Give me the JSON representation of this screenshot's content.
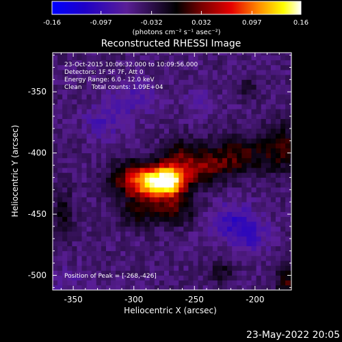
{
  "chart_data": {
    "type": "heatmap",
    "title": "Reconstructed RHESSI Image",
    "xlabel": "Heliocentric X (arcsec)",
    "ylabel": "Heliocentric Y (arcsec)",
    "xlim": [
      -367,
      -170
    ],
    "ylim": [
      -512,
      -318
    ],
    "x_ticks": [
      "-350",
      "-300",
      "-250",
      "-200"
    ],
    "x_tick_values": [
      -350,
      -300,
      -250,
      -200
    ],
    "y_ticks": [
      "-350",
      "-400",
      "-450",
      "-500"
    ],
    "y_tick_values": [
      -350,
      -400,
      -450,
      -500
    ],
    "colorbar": {
      "ticks": [
        "-0.16",
        "-0.097",
        "-0.032",
        "0.032",
        "0.097",
        "0.16"
      ],
      "tick_values": [
        -0.16,
        -0.097,
        -0.032,
        0.032,
        0.097,
        0.16
      ],
      "range": [
        -0.16,
        0.16
      ],
      "unit_label": "(photons cm⁻² s⁻¹ asec⁻²)",
      "colormap": [
        "#0000ff",
        "#1e00c8",
        "#5a1e96",
        "#000000",
        "#780000",
        "#e60000",
        "#ff8c00",
        "#ffff00",
        "#ffffff"
      ]
    },
    "info_lines": [
      "23-Oct-2015 10:06:32.000 to 10:09:56.000",
      "Detectors: 1F 5F 7F, Att 0",
      "Energy Range: 6.0 - 12.0 keV",
      "Clean     Total counts: 1.09E+04"
    ],
    "peak_label": "Position of Peak = [-268,-426]",
    "peak_position": [
      -268,
      -426
    ],
    "sources": [
      {
        "x": -270,
        "y": -423,
        "sx": 10,
        "sy": 9,
        "amp": 0.16
      },
      {
        "x": -285,
        "y": -424,
        "sx": 12,
        "sy": 9,
        "amp": 0.12
      },
      {
        "x": -300,
        "y": -422,
        "sx": 14,
        "sy": 11,
        "amp": 0.075
      },
      {
        "x": -247,
        "y": -412,
        "sx": 16,
        "sy": 9,
        "amp": 0.07
      },
      {
        "x": -215,
        "y": -402,
        "sx": 18,
        "sy": 11,
        "amp": 0.06
      },
      {
        "x": -178,
        "y": -395,
        "sx": 12,
        "sy": 14,
        "amp": 0.055
      },
      {
        "x": -268,
        "y": -447,
        "sx": 16,
        "sy": 9,
        "amp": 0.055
      },
      {
        "x": -300,
        "y": -450,
        "sx": 10,
        "sy": 8,
        "amp": 0.04
      },
      {
        "x": -262,
        "y": -398,
        "sx": 10,
        "sy": 8,
        "amp": 0.04
      },
      {
        "x": -358,
        "y": -450,
        "sx": 6,
        "sy": 14,
        "amp": 0.04
      },
      {
        "x": -172,
        "y": -505,
        "sx": 8,
        "sy": 8,
        "amp": 0.06
      },
      {
        "x": -228,
        "y": -497,
        "sx": 7,
        "sy": 6,
        "amp": 0.04
      },
      {
        "x": -205,
        "y": -347,
        "sx": 5,
        "sy": 6,
        "amp": 0.03
      },
      {
        "x": -300,
        "y": -355,
        "sx": 14,
        "sy": 10,
        "amp": -0.03
      },
      {
        "x": -325,
        "y": -375,
        "sx": 12,
        "sy": 10,
        "amp": -0.03
      },
      {
        "x": -220,
        "y": -455,
        "sx": 16,
        "sy": 10,
        "amp": -0.045
      },
      {
        "x": -205,
        "y": -470,
        "sx": 12,
        "sy": 10,
        "amp": -0.035
      },
      {
        "x": -355,
        "y": -505,
        "sx": 10,
        "sy": 8,
        "amp": -0.02
      },
      {
        "x": -245,
        "y": -358,
        "sx": 10,
        "sy": 8,
        "amp": -0.02
      }
    ],
    "grid": false
  },
  "footer_date": "23-May-2022 20:05"
}
